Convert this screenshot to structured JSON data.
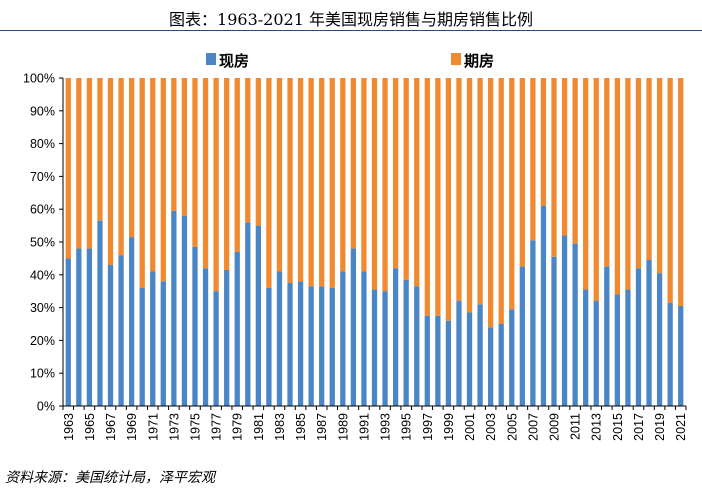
{
  "title": "图表：1963-2021 年美国现房销售与期房销售比例",
  "source": "资料来源：美国统计局，泽平宏观",
  "colors": {
    "existing": "#4a86c6",
    "presale": "#f08a30",
    "title_rule": "#1f4e79"
  },
  "chart_data": {
    "type": "bar",
    "stacked": true,
    "categories": [
      1963,
      1964,
      1965,
      1966,
      1967,
      1968,
      1969,
      1970,
      1971,
      1972,
      1973,
      1974,
      1975,
      1976,
      1977,
      1978,
      1979,
      1980,
      1981,
      1982,
      1983,
      1984,
      1985,
      1986,
      1987,
      1988,
      1989,
      1990,
      1991,
      1992,
      1993,
      1994,
      1995,
      1996,
      1997,
      1998,
      1999,
      2000,
      2001,
      2002,
      2003,
      2004,
      2005,
      2006,
      2007,
      2008,
      2009,
      2010,
      2011,
      2012,
      2013,
      2014,
      2015,
      2016,
      2017,
      2018,
      2019,
      2020,
      2021
    ],
    "x_tick_labels": [
      "1963",
      "1965",
      "1967",
      "1969",
      "1971",
      "1973",
      "1975",
      "1977",
      "1979",
      "1981",
      "1983",
      "1985",
      "1987",
      "1989",
      "1991",
      "1993",
      "1995",
      "1997",
      "1999",
      "2001",
      "2003",
      "2005",
      "2007",
      "2009",
      "2011",
      "2013",
      "2015",
      "2017",
      "2019",
      "2021"
    ],
    "series": [
      {
        "name": "现房",
        "values": [
          45,
          48,
          48,
          56.5,
          43,
          46,
          51.5,
          36,
          41,
          38,
          59.5,
          58,
          48.5,
          42,
          35,
          41.5,
          47,
          56,
          55,
          36,
          41,
          37.5,
          38,
          36.5,
          36.5,
          36,
          41,
          48,
          41,
          35.5,
          35,
          42,
          38.5,
          36.5,
          27.5,
          27.5,
          26,
          32,
          28.5,
          31,
          24,
          25,
          29.5,
          42.5,
          50.5,
          61,
          45.5,
          52,
          49.5,
          35.5,
          32,
          42.5,
          34,
          35.5,
          42,
          44.5,
          40.5,
          31.5,
          30.5
        ]
      },
      {
        "name": "期房",
        "values": [
          55,
          52,
          52,
          43.5,
          57,
          54,
          48.5,
          64,
          59,
          62,
          40.5,
          42,
          51.5,
          58,
          65,
          58.5,
          53,
          44,
          45,
          64,
          59,
          62.5,
          62,
          63.5,
          63.5,
          64,
          59,
          52,
          59,
          64.5,
          65,
          58,
          61.5,
          63.5,
          72.5,
          72.5,
          74,
          68,
          71.5,
          69,
          76,
          75,
          70.5,
          57.5,
          49.5,
          39,
          54.5,
          48,
          50.5,
          64.5,
          68,
          57.5,
          66,
          64.5,
          58,
          55.5,
          59.5,
          68.5,
          69.5
        ]
      }
    ],
    "y_tick_labels": [
      "0%",
      "10%",
      "20%",
      "30%",
      "40%",
      "50%",
      "60%",
      "70%",
      "80%",
      "90%",
      "100%"
    ],
    "ylim": [
      0,
      100
    ],
    "grid": false,
    "legend_position": "top"
  }
}
